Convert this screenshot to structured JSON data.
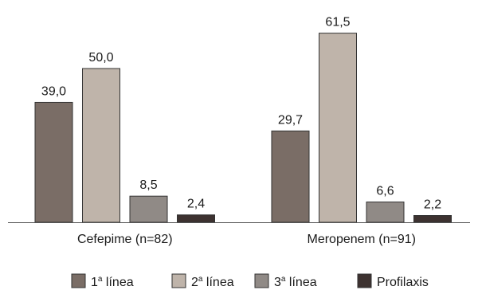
{
  "chart_data": {
    "type": "bar",
    "categories": [
      "Cefepime (n=82)",
      "Meropenem (n=91)"
    ],
    "series": [
      {
        "name": "1ª línea",
        "values": [
          39.0,
          29.7
        ],
        "color": "#7a6d66"
      },
      {
        "name": "2ª línea",
        "values": [
          50.0,
          61.5
        ],
        "color": "#bfb4aa"
      },
      {
        "name": "3ª línea",
        "values": [
          8.5,
          6.6
        ],
        "color": "#908a86"
      },
      {
        "name": "Profilaxis",
        "values": [
          2.4,
          2.2
        ],
        "color": "#3d3230"
      }
    ],
    "value_labels": [
      [
        "39,0",
        "29,7"
      ],
      [
        "50,0",
        "61,5"
      ],
      [
        "8,5",
        "6,6"
      ],
      [
        "2,4",
        "2,2"
      ]
    ],
    "legend": [
      {
        "prefix": "1",
        "sup": "a",
        "suffix": " línea"
      },
      {
        "prefix": "2",
        "sup": "a",
        "suffix": " línea"
      },
      {
        "prefix": "3",
        "sup": "a",
        "suffix": " línea"
      },
      {
        "prefix": "Profilaxis",
        "sup": "",
        "suffix": ""
      }
    ],
    "ylim": [
      0,
      65
    ],
    "grid": false,
    "legend_position": "bottom",
    "bar_stroke": "#333333",
    "axis_color": "#555555"
  }
}
